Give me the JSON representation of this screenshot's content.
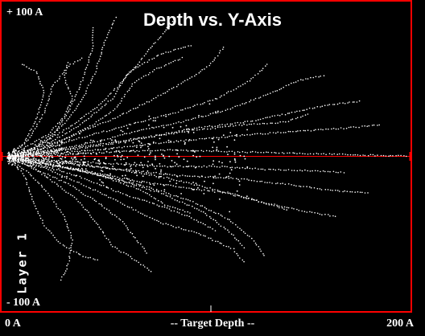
{
  "chart_data": {
    "type": "scatter",
    "title": "Depth vs. Y-Axis",
    "xlabel": "-- Target Depth --",
    "ylabel": "",
    "side_label": "Layer 1",
    "x_tick_labels": [
      "0 A",
      "200 A"
    ],
    "y_tick_labels": [
      "+ 100 A",
      "- 100 A"
    ],
    "xlim": [
      0,
      200
    ],
    "ylim": [
      -100,
      100
    ],
    "grid": false,
    "legend": "none",
    "colors": {
      "background": "#000000",
      "border": "#ff0000",
      "points": "#ffffff",
      "axes": "#ffffff"
    },
    "tracks": [
      [
        [
          0,
          0
        ],
        [
          10,
          4
        ],
        [
          20,
          12
        ],
        [
          30,
          26
        ],
        [
          38,
          42
        ],
        [
          44,
          60
        ],
        [
          48,
          78
        ],
        [
          54,
          96
        ]
      ],
      [
        [
          0,
          0
        ],
        [
          12,
          6
        ],
        [
          24,
          18
        ],
        [
          32,
          36
        ],
        [
          38,
          56
        ],
        [
          42,
          74
        ],
        [
          42,
          90
        ]
      ],
      [
        [
          0,
          0
        ],
        [
          15,
          8
        ],
        [
          30,
          20
        ],
        [
          44,
          34
        ],
        [
          56,
          50
        ],
        [
          66,
          66
        ],
        [
          76,
          82
        ],
        [
          84,
          96
        ]
      ],
      [
        [
          0,
          0
        ],
        [
          16,
          6
        ],
        [
          34,
          16
        ],
        [
          52,
          26
        ],
        [
          70,
          38
        ],
        [
          86,
          50
        ],
        [
          100,
          62
        ],
        [
          108,
          76
        ]
      ],
      [
        [
          0,
          0
        ],
        [
          14,
          4
        ],
        [
          28,
          12
        ],
        [
          42,
          22
        ],
        [
          54,
          34
        ],
        [
          62,
          50
        ],
        [
          74,
          60
        ],
        [
          88,
          68
        ]
      ],
      [
        [
          0,
          0
        ],
        [
          18,
          6
        ],
        [
          38,
          14
        ],
        [
          60,
          22
        ],
        [
          82,
          30
        ],
        [
          104,
          40
        ],
        [
          120,
          52
        ],
        [
          130,
          64
        ]
      ],
      [
        [
          0,
          0
        ],
        [
          20,
          5
        ],
        [
          42,
          10
        ],
        [
          64,
          18
        ],
        [
          86,
          24
        ],
        [
          108,
          32
        ],
        [
          128,
          42
        ],
        [
          144,
          52
        ],
        [
          158,
          56
        ]
      ],
      [
        [
          0,
          0
        ],
        [
          22,
          4
        ],
        [
          46,
          8
        ],
        [
          70,
          14
        ],
        [
          94,
          20
        ],
        [
          118,
          24
        ],
        [
          140,
          30
        ],
        [
          160,
          36
        ],
        [
          176,
          38
        ]
      ],
      [
        [
          0,
          0
        ],
        [
          8,
          10
        ],
        [
          14,
          26
        ],
        [
          18,
          44
        ],
        [
          14,
          58
        ],
        [
          6,
          64
        ]
      ],
      [
        [
          0,
          0
        ],
        [
          10,
          12
        ],
        [
          18,
          30
        ],
        [
          22,
          48
        ],
        [
          30,
          62
        ],
        [
          38,
          68
        ]
      ],
      [
        [
          0,
          0
        ],
        [
          24,
          3
        ],
        [
          50,
          6
        ],
        [
          76,
          10
        ],
        [
          100,
          13
        ],
        [
          124,
          16
        ],
        [
          148,
          18
        ],
        [
          168,
          20
        ],
        [
          186,
          22
        ]
      ],
      [
        [
          0,
          0
        ],
        [
          26,
          2
        ],
        [
          54,
          4
        ],
        [
          82,
          5
        ],
        [
          110,
          4
        ],
        [
          140,
          3
        ],
        [
          170,
          2
        ],
        [
          199,
          1
        ]
      ],
      [
        [
          0,
          0
        ],
        [
          24,
          -2
        ],
        [
          50,
          -4
        ],
        [
          78,
          -6
        ],
        [
          104,
          -6
        ],
        [
          128,
          -8
        ],
        [
          150,
          -9
        ],
        [
          168,
          -10
        ]
      ],
      [
        [
          0,
          0
        ],
        [
          20,
          -4
        ],
        [
          42,
          -10
        ],
        [
          64,
          -16
        ],
        [
          86,
          -20
        ],
        [
          108,
          -24
        ],
        [
          126,
          -30
        ],
        [
          140,
          -36
        ]
      ],
      [
        [
          0,
          0
        ],
        [
          18,
          -6
        ],
        [
          38,
          -14
        ],
        [
          56,
          -24
        ],
        [
          74,
          -32
        ],
        [
          90,
          -40
        ],
        [
          104,
          -50
        ]
      ],
      [
        [
          0,
          0
        ],
        [
          14,
          -8
        ],
        [
          30,
          -18
        ],
        [
          44,
          -30
        ],
        [
          56,
          -42
        ],
        [
          64,
          -56
        ],
        [
          70,
          -66
        ]
      ],
      [
        [
          0,
          0
        ],
        [
          10,
          -10
        ],
        [
          20,
          -24
        ],
        [
          28,
          -40
        ],
        [
          32,
          -56
        ],
        [
          30,
          -72
        ],
        [
          26,
          -84
        ]
      ],
      [
        [
          0,
          0
        ],
        [
          22,
          -5
        ],
        [
          46,
          -12
        ],
        [
          70,
          -20
        ],
        [
          92,
          -30
        ],
        [
          110,
          -42
        ],
        [
          122,
          -56
        ],
        [
          128,
          -68
        ]
      ],
      [
        [
          0,
          0
        ],
        [
          26,
          -3
        ],
        [
          54,
          -8
        ],
        [
          80,
          -14
        ],
        [
          104,
          -22
        ],
        [
          126,
          -30
        ],
        [
          146,
          -36
        ],
        [
          164,
          -40
        ]
      ],
      [
        [
          0,
          0
        ],
        [
          16,
          -4
        ],
        [
          34,
          -8
        ],
        [
          50,
          -14
        ],
        [
          66,
          -22
        ],
        [
          78,
          -32
        ],
        [
          92,
          -38
        ]
      ],
      [
        [
          0,
          0
        ],
        [
          12,
          -6
        ],
        [
          22,
          -16
        ],
        [
          34,
          -28
        ],
        [
          44,
          -44
        ],
        [
          52,
          -60
        ],
        [
          64,
          -70
        ],
        [
          72,
          -78
        ]
      ],
      [
        [
          0,
          0
        ],
        [
          28,
          -4
        ],
        [
          56,
          -8
        ],
        [
          84,
          -12
        ],
        [
          112,
          -14
        ],
        [
          138,
          -18
        ],
        [
          160,
          -22
        ],
        [
          180,
          -24
        ]
      ],
      [
        [
          0,
          0
        ],
        [
          20,
          -8
        ],
        [
          40,
          -20
        ],
        [
          58,
          -32
        ],
        [
          76,
          -44
        ],
        [
          96,
          -52
        ],
        [
          112,
          -62
        ],
        [
          118,
          -72
        ]
      ],
      [
        [
          0,
          0
        ],
        [
          8,
          -12
        ],
        [
          12,
          -28
        ],
        [
          18,
          -46
        ],
        [
          26,
          -58
        ],
        [
          36,
          -66
        ],
        [
          46,
          -70
        ]
      ],
      [
        [
          0,
          0
        ],
        [
          18,
          8
        ],
        [
          36,
          22
        ],
        [
          52,
          40
        ],
        [
          60,
          58
        ],
        [
          76,
          70
        ],
        [
          92,
          76
        ]
      ],
      [
        [
          0,
          0
        ],
        [
          30,
          6
        ],
        [
          60,
          12
        ],
        [
          90,
          18
        ],
        [
          116,
          22
        ],
        [
          138,
          24
        ],
        [
          150,
          30
        ]
      ],
      [
        [
          0,
          0
        ],
        [
          26,
          -6
        ],
        [
          52,
          -14
        ],
        [
          76,
          -24
        ],
        [
          96,
          -36
        ],
        [
          110,
          -50
        ],
        [
          118,
          -62
        ]
      ],
      [
        [
          0,
          0
        ],
        [
          10,
          8
        ],
        [
          20,
          16
        ],
        [
          28,
          28
        ],
        [
          32,
          40
        ],
        [
          28,
          54
        ],
        [
          30,
          66
        ]
      ]
    ]
  }
}
